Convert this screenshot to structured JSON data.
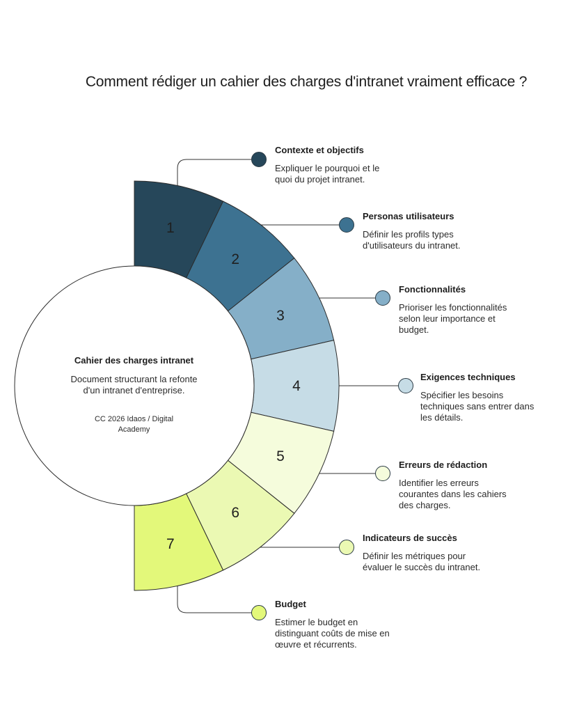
{
  "title": "Comment rédiger un cahier des charges d'intranet vraiment efficace ?",
  "center": {
    "title": "Cahier des charges intranet",
    "description": "Document structurant la refonte d'un intranet d'entreprise.",
    "credit": "CC 2026 Idaos / Digital Academy"
  },
  "steps": [
    {
      "number": "1",
      "title": "Contexte et objectifs",
      "description": "Expliquer le pourquoi et le quoi du projet intranet.",
      "color": "#26475a"
    },
    {
      "number": "2",
      "title": "Personas utilisateurs",
      "description": "Définir les profils types d'utilisateurs du intranet.",
      "color": "#3d7291"
    },
    {
      "number": "3",
      "title": "Fonctionnalités",
      "description": "Prioriser les fonctionnalités selon leur importance et budget.",
      "color": "#85afc8"
    },
    {
      "number": "4",
      "title": "Exigences techniques",
      "description": "Spécifier les besoins techniques sans entrer dans les détails.",
      "color": "#c6dce6"
    },
    {
      "number": "5",
      "title": "Erreurs de rédaction",
      "description": "Identifier les erreurs courantes dans les cahiers des charges.",
      "color": "#f5fcdc"
    },
    {
      "number": "6",
      "title": "Indicateurs de succès",
      "description": "Définir les métriques pour évaluer le succès du intranet.",
      "color": "#ebf9b3"
    },
    {
      "number": "7",
      "title": "Budget",
      "description": "Estimer le budget en distinguant coûts de mise en œuvre et récurrents.",
      "color": "#e3f87a"
    }
  ]
}
